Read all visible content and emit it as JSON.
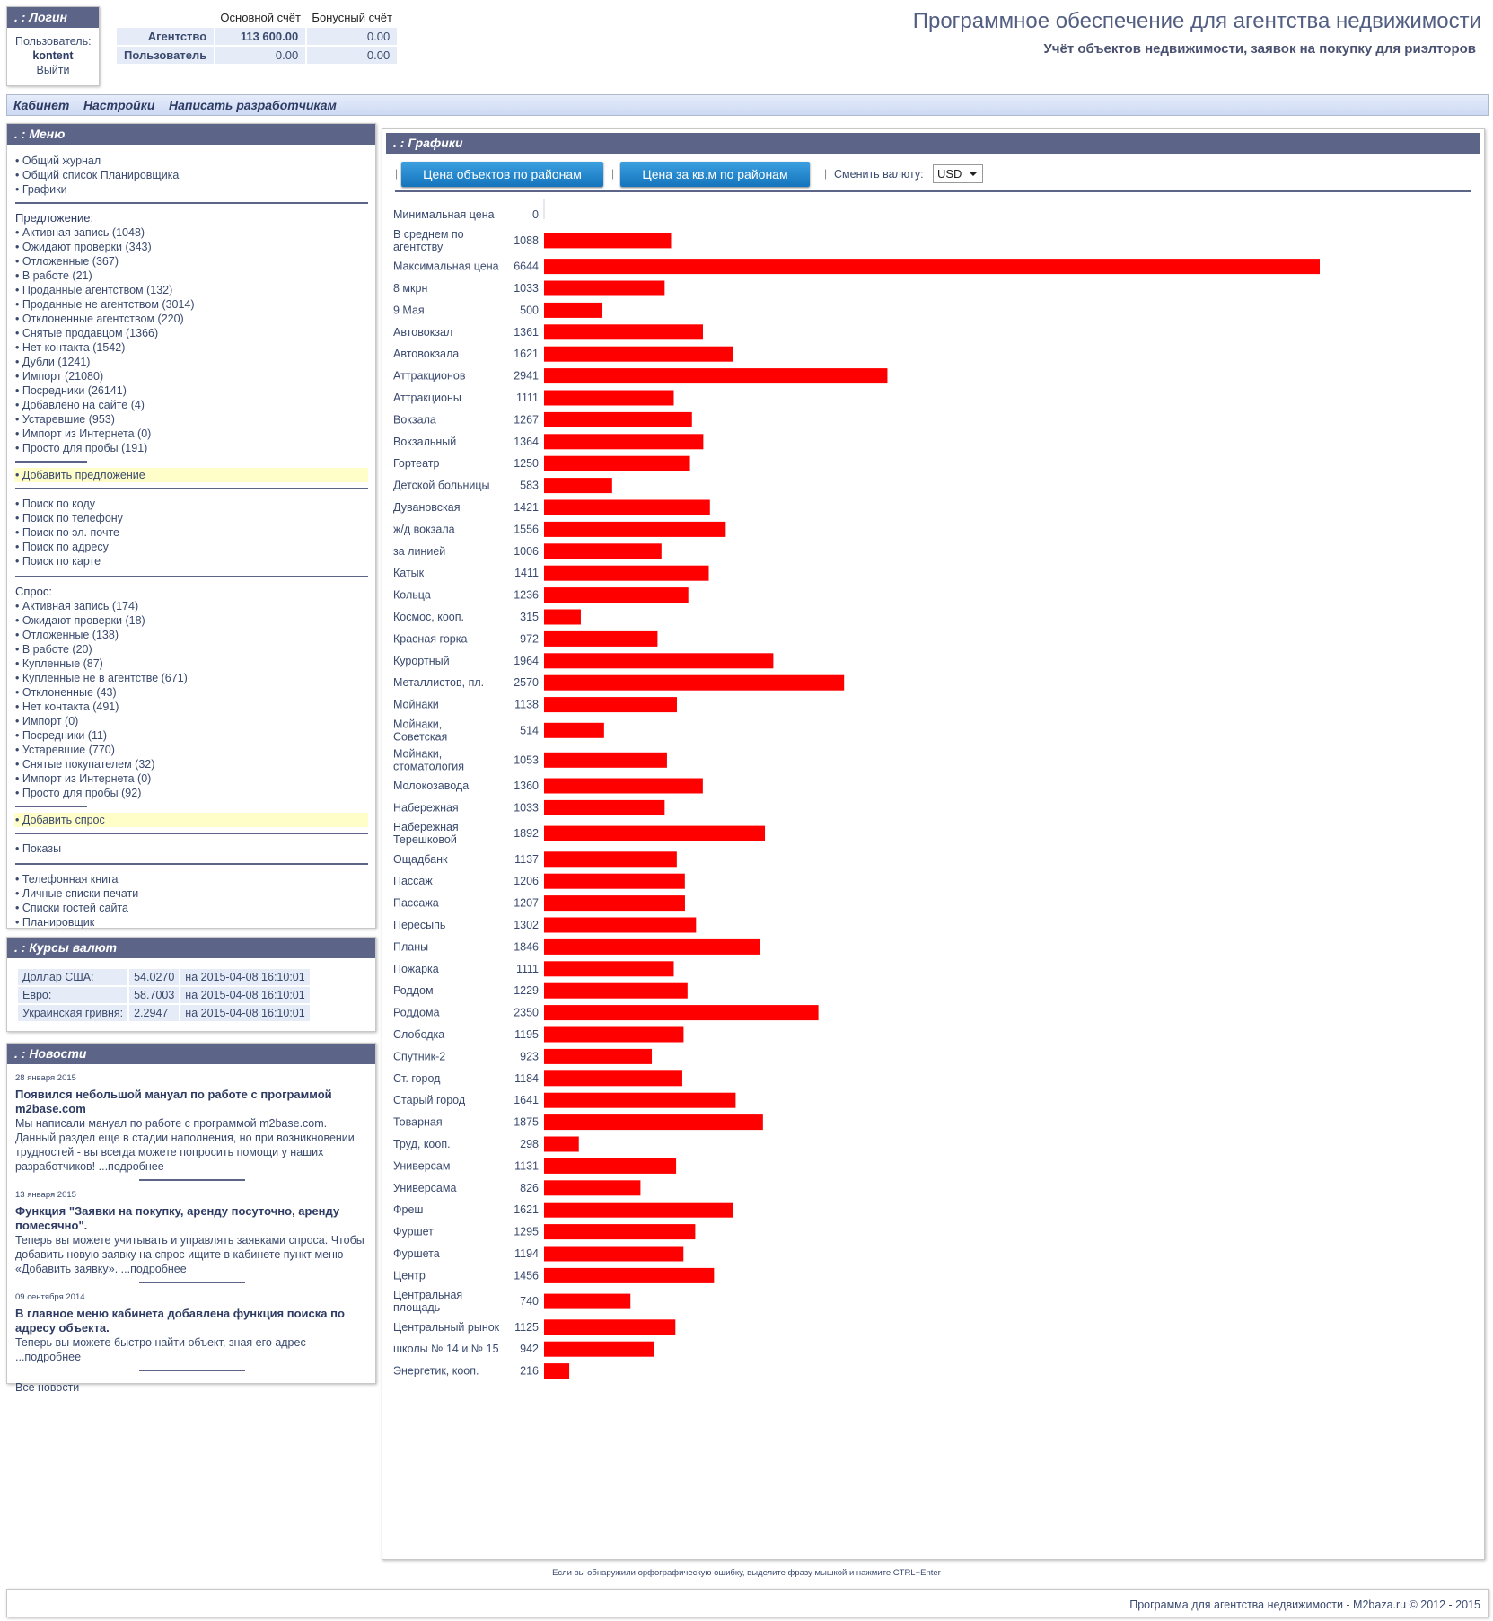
{
  "login": {
    "title": ". : Логин",
    "user_label": "Пользователь:",
    "user": "kontent",
    "logout": "Выйти"
  },
  "accounts": {
    "headers": [
      "Основной счёт",
      "Бонусный счёт"
    ],
    "rows": [
      {
        "label": "Агентство",
        "main": "113 600.00",
        "bonus": "0.00"
      },
      {
        "label": "Пользователь",
        "main": "0.00",
        "bonus": "0.00"
      }
    ]
  },
  "header": {
    "title": "Программное обеспечение для агентства недвижимости",
    "subtitle": "Учёт объектов недвижимости, заявок на покупку для риэлторов"
  },
  "nav": [
    "Кабинет",
    "Настройки",
    "Написать разработчикам"
  ],
  "menu": {
    "title": ". : Меню",
    "top": [
      "Общий журнал",
      "Общий список Планировщика",
      "Графики"
    ],
    "offer_title": "Предложение",
    "offer": [
      "Активная запись (1048)",
      "Ожидают проверки (343)",
      "Отложенные (367)",
      "В работе (21)",
      "Проданные агентством (132)",
      "Проданные не агентством (3014)",
      "Отклоненные агентством (220)",
      "Снятые продавцом (1366)",
      "Нет контакта (1542)",
      "Дубли (1241)",
      "Импорт (21080)",
      "Посредники (26141)",
      "Добавлено на сайте (4)",
      "Устаревшие (953)",
      "Импорт из Интернета (0)",
      "Просто для пробы (191)"
    ],
    "add_offer": "Добавить предложение",
    "search": [
      "Поиск по коду",
      "Поиск по телефону",
      "Поиск по эл. почте",
      "Поиск по адресу",
      "Поиск по карте"
    ],
    "demand_title": "Спрос",
    "demand": [
      "Активная запись (174)",
      "Ожидают проверки (18)",
      "Отложенные (138)",
      "В работе (20)",
      "Купленные (87)",
      "Купленные не в агентстве (671)",
      "Отклоненные (43)",
      "Нет контакта (491)",
      "Импорт (0)",
      "Посредники (11)",
      "Устаревшие (770)",
      "Снятые покупателем (32)",
      "Импорт из Интернета (0)",
      "Просто для пробы (92)"
    ],
    "add_demand": "Добавить спрос",
    "shows": "Показы",
    "misc": [
      "Телефонная книга",
      "Личные списки печати",
      "Списки гостей сайта",
      "Планировщик"
    ]
  },
  "rates": {
    "title": ". : Курсы валют",
    "rows": [
      {
        "name": "Доллар США:",
        "value": "54.0270",
        "date": "на 2015-04-08 16:10:01"
      },
      {
        "name": "Евро:",
        "value": "58.7003",
        "date": "на 2015-04-08 16:10:01"
      },
      {
        "name": "Украинская гривня:",
        "value": "2.2947",
        "date": "на 2015-04-08 16:10:01"
      }
    ]
  },
  "news": {
    "title": ". : Новости",
    "items": [
      {
        "date": "28 января 2015",
        "title": "Появился небольшой мануал по работе с программой m2base.com",
        "text": "Мы написали мануал по работе с программой m2base.com. Данный раздел еще в стадии наполнения, но при возникновении трудностей - вы всегда можете попросить помощи у наших разработчиков!",
        "more": "...подробнее"
      },
      {
        "date": "13 января 2015",
        "title": "Функция \"Заявки на покупку, аренду посуточно, аренду помесячно\".",
        "text": "Теперь вы можете учитывать и управлять заявками спроса. Чтобы добавить новую заявку на спрос ищите в кабинете пункт меню «Добавить заявку».",
        "more": "...подробнее"
      },
      {
        "date": "09 сентября 2014",
        "title": "В главное меню кабинета добавлена функция поиска по адресу объекта.",
        "text": "Теперь вы можете быстро найти объект, зная его адрес",
        "more": "...подробнее"
      }
    ],
    "all": "Все новости"
  },
  "graphs": {
    "title": ". : Графики",
    "btn_price": "Цена объектов по районам",
    "btn_sqm": "Цена за кв.м по районам",
    "currency_label": "Сменить валюту:",
    "currency": "USD"
  },
  "chart_data": {
    "type": "bar",
    "orientation": "horizontal",
    "bar_color": "#ff0000",
    "categories": [
      "Минимальная цена",
      "В среднем по агентству",
      "Максимальная цена",
      "8 мкрн",
      "9 Мая",
      "Автовокзал",
      "Автовокзала",
      "Аттракционов",
      "Аттракционы",
      "Вокзала",
      "Вокзальный",
      "Гортеатр",
      "Детской больницы",
      "Дувановская",
      "ж/д вокзала",
      "за линией",
      "Катык",
      "Кольца",
      "Космос, кооп.",
      "Красная горка",
      "Курортный",
      "Металлистов, пл.",
      "Мойнаки",
      "Мойнаки, Советская",
      "Мойнаки, стоматология",
      "Молокозавода",
      "Набережная",
      "Набережная Терешковой",
      "Ощадбанк",
      "Пассаж",
      "Пассажа",
      "Пересыпь",
      "Планы",
      "Пожарка",
      "Роддом",
      "Роддома",
      "Слободка",
      "Спутник-2",
      "Ст. город",
      "Старый город",
      "Товарная",
      "Труд, кооп.",
      "Универсам",
      "Универсама",
      "Фреш",
      "Фуршет",
      "Фуршета",
      "Центр",
      "Центральная площадь",
      "Центральный рынок",
      "школы № 14 и № 15",
      "Энергетик, кооп."
    ],
    "values": [
      0,
      1088,
      6644,
      1033,
      500,
      1361,
      1621,
      2941,
      1111,
      1267,
      1364,
      1250,
      583,
      1421,
      1556,
      1006,
      1411,
      1236,
      315,
      972,
      1964,
      2570,
      1138,
      514,
      1053,
      1360,
      1033,
      1892,
      1137,
      1206,
      1207,
      1302,
      1846,
      1111,
      1229,
      2350,
      1195,
      923,
      1184,
      1641,
      1875,
      298,
      1131,
      826,
      1621,
      1295,
      1194,
      1456,
      740,
      1125,
      942,
      216
    ],
    "xlim": [
      0,
      6644
    ]
  },
  "footer": {
    "spell": "Если вы обнаружили орфографическую ошибку, выделите фразу мышкой и нажмите CTRL+Enter",
    "copyright": "Программа для агентства недвижимости - M2baza.ru © 2012 - 2015"
  }
}
